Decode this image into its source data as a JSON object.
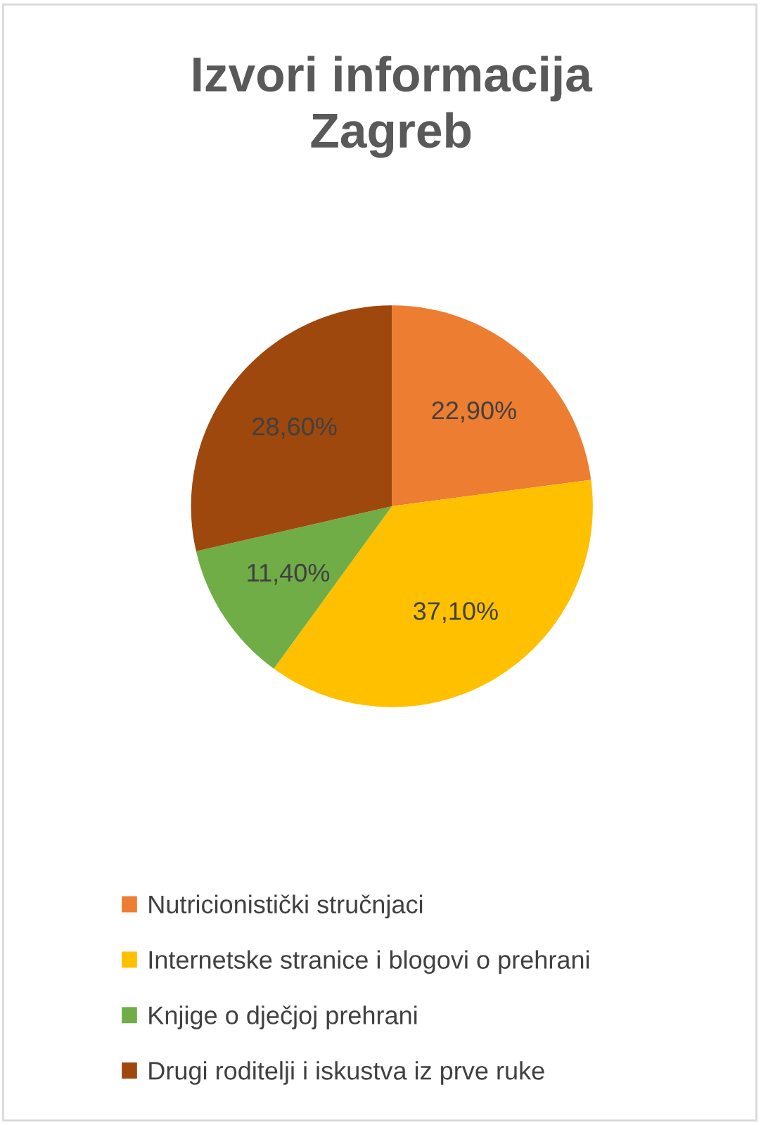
{
  "chart_data": {
    "type": "pie",
    "title": "Izvori informacija\nZagreb",
    "categories": [
      "Nutricionistički stručnjaci",
      "Internetske stranice i blogovi o prehrani",
      "Knjige o dječjoj prehrani",
      "Drugi roditelji i iskustva iz prve ruke"
    ],
    "values": [
      22.9,
      37.1,
      11.4,
      28.6
    ],
    "value_labels": [
      "22,90%",
      "37,10%",
      "11,40%",
      "28,60%"
    ],
    "colors": [
      "#ed7d31",
      "#ffc000",
      "#70ad47",
      "#9e480e"
    ],
    "legend": "bottom"
  }
}
